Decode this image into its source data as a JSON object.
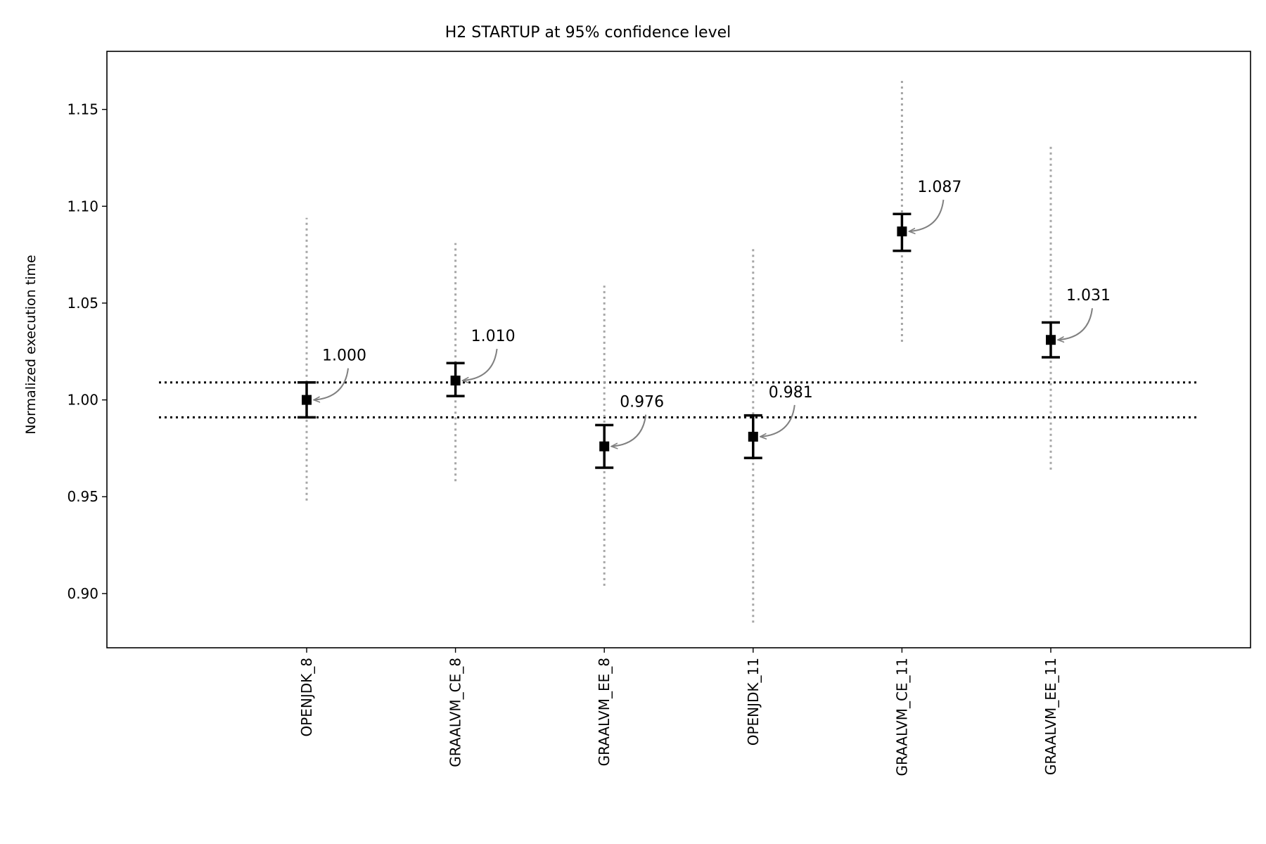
{
  "chart_data": {
    "type": "scatter",
    "title": "H2 STARTUP at 95% confidence level",
    "xlabel": "",
    "ylabel": "Normalized execution time",
    "ylim": [
      0.872,
      1.18
    ],
    "yticks": [
      "0.90",
      "0.95",
      "1.00",
      "1.05",
      "1.10",
      "1.15"
    ],
    "categories": [
      "OPENJDK_8",
      "GRAALVM_CE_8",
      "GRAALVM_EE_8",
      "OPENJDK_11",
      "GRAALVM_CE_11",
      "GRAALVM_EE_11"
    ],
    "values": [
      1.0,
      1.01,
      0.976,
      0.981,
      1.087,
      1.031
    ],
    "labels": [
      "1.000",
      "1.010",
      "0.976",
      "0.981",
      "1.087",
      "1.031"
    ],
    "ci_low": [
      0.991,
      1.002,
      0.965,
      0.97,
      1.077,
      1.022
    ],
    "ci_high": [
      1.009,
      1.019,
      0.987,
      0.992,
      1.096,
      1.04
    ],
    "range_low": [
      0.948,
      0.958,
      0.904,
      0.885,
      1.03,
      0.964
    ],
    "range_high": [
      1.094,
      1.081,
      1.059,
      1.078,
      1.166,
      1.131
    ],
    "reference_lines": [
      1.009,
      0.991
    ],
    "grid": false,
    "legend": "none",
    "colors": {
      "point": "#000000",
      "range": "#a6a6a6",
      "arrow": "#808080",
      "reference": "#000000"
    }
  }
}
